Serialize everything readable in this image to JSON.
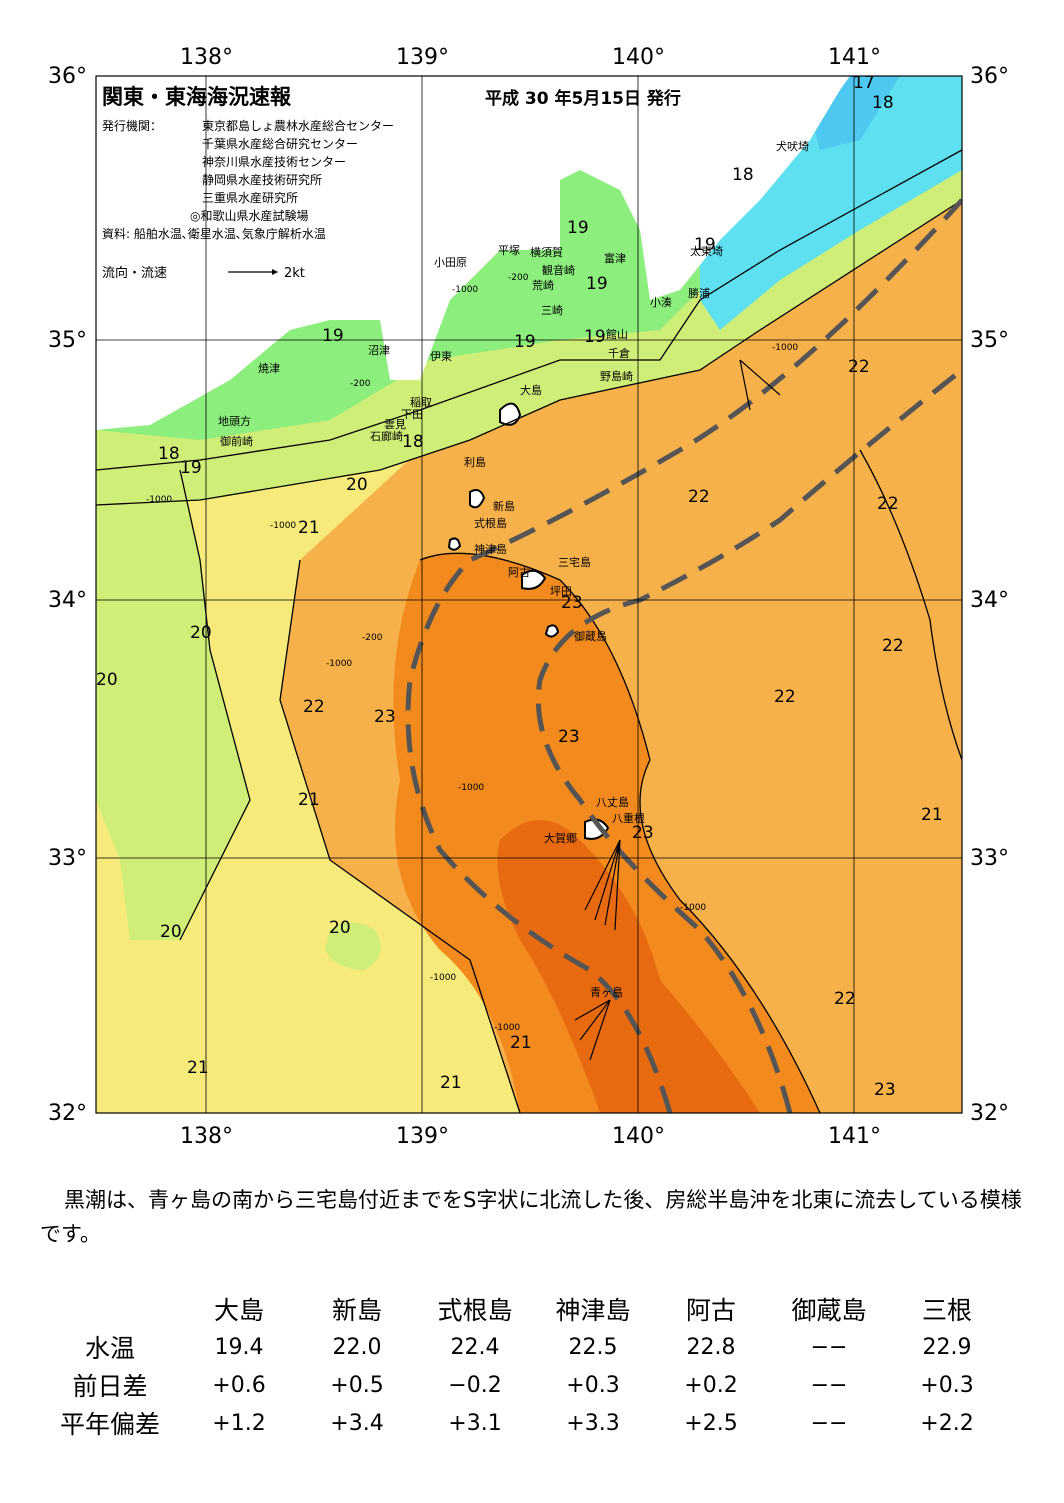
{
  "map": {
    "title": "関東・東海海況速報",
    "issue_date": "平成 30 年5月15日 発行",
    "publisher_label": "発行機関：",
    "publishers": [
      "東京都島しょ農林水産総合センター",
      "千葉県水産総合研究センター",
      "神奈川県水産技術センター",
      "静岡県水産技術研究所",
      "三重県水産研究所",
      "◎和歌山県水産試験場"
    ],
    "source": "資料: 船舶水温､衛星水温､気象庁解析水温",
    "current_legend_label": "流向・流速",
    "current_legend_unit": "2kt",
    "lon_labels": [
      "138°",
      "139°",
      "140°",
      "141°"
    ],
    "lat_labels": [
      "36°",
      "35°",
      "34°",
      "33°",
      "32°"
    ],
    "places": [
      "犬吠埼",
      "太東埼",
      "勝浦",
      "小湊",
      "富津",
      "観音崎",
      "横須賀",
      "平塚",
      "荒崎",
      "三崎",
      "館山",
      "千倉",
      "野島崎",
      "小田原",
      "沼津",
      "伊東",
      "焼津",
      "稲取",
      "下田",
      "雲見",
      "石廊崎",
      "地頭方",
      "御前崎",
      "大島",
      "利島",
      "新島",
      "式根島",
      "神津島",
      "三宅島",
      "阿古",
      "坪田",
      "御蔵島",
      "八丈島",
      "大賀郷",
      "八重根",
      "青ヶ島"
    ],
    "isotherm_labels": [
      "17",
      "18",
      "18",
      "19",
      "19",
      "19",
      "19",
      "19",
      "19",
      "18",
      "18",
      "19",
      "20",
      "21",
      "22",
      "22",
      "22",
      "22",
      "22",
      "20",
      "20",
      "22",
      "23",
      "23",
      "23",
      "21",
      "21",
      "23",
      "20",
      "21",
      "22",
      "21",
      "21",
      "20",
      "23"
    ],
    "depth_labels": [
      "-200",
      "-1000"
    ]
  },
  "description": "黒潮は、青ヶ島の南から三宅島付近までをS字状に北流した後、房総半島沖を北東に流去している模様です。",
  "table": {
    "stations": [
      "大島",
      "新島",
      "式根島",
      "神津島",
      "阿古",
      "御蔵島",
      "三根"
    ],
    "rows": [
      {
        "label": "水温",
        "values": [
          "19.4",
          "22.0",
          "22.4",
          "22.5",
          "22.8",
          "−−",
          "22.9"
        ]
      },
      {
        "label": "前日差",
        "values": [
          "+0.6",
          "+0.5",
          "−0.2",
          "+0.3",
          "+0.2",
          "−−",
          "+0.3"
        ]
      },
      {
        "label": "平年偏差",
        "values": [
          "+1.2",
          "+3.4",
          "+3.1",
          "+3.3",
          "+2.5",
          "−−",
          "+2.2"
        ]
      }
    ]
  },
  "colors": {
    "land": "#ffffff",
    "c18": "#5fe0f0",
    "c19": "#8cee7c",
    "c20": "#cfee78",
    "c21": "#f6ea7a",
    "c22": "#f7b14a",
    "c23": "#f28a1e",
    "c24": "#e86a10",
    "kuroshio": "#555555"
  }
}
